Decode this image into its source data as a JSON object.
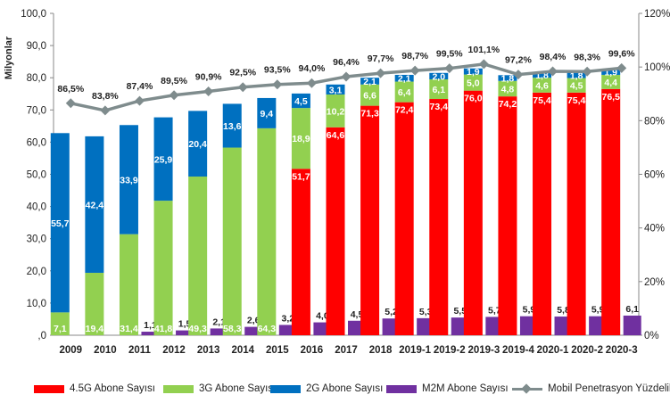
{
  "chart_data": {
    "type": "bar",
    "ylabel": "Milyonlar",
    "ylim": [
      0,
      100
    ],
    "y2lim": [
      0,
      120
    ],
    "yticks": [
      "0,0",
      "10,0",
      "20,0",
      "30,0",
      "40,0",
      "50,0",
      "60,0",
      "70,0",
      "80,0",
      "90,0",
      "100,0"
    ],
    "yticks_display": [
      ",0",
      "10,0",
      "20,0",
      "30,0",
      "40,0",
      "50,0",
      "60,0",
      "70,0",
      "80,0",
      "90,0",
      "100,0"
    ],
    "y2ticks": [
      "0%",
      "20%",
      "40%",
      "60%",
      "80%",
      "100%",
      "120%"
    ],
    "categories": [
      "2009",
      "2010",
      "2011",
      "2012",
      "2013",
      "2014",
      "2015",
      "2016",
      "2017",
      "2018",
      "2019-1",
      "2019-2",
      "2019-3",
      "2019-4",
      "2020-1",
      "2020-2",
      "2020-3"
    ],
    "stacked_series": [
      {
        "name": "4.5G Abone Sayısı",
        "color": "#ff0000",
        "values": [
          null,
          null,
          null,
          null,
          null,
          null,
          null,
          51.7,
          64.6,
          71.3,
          72.4,
          73.4,
          76.0,
          74.2,
          75.4,
          75.4,
          76.5
        ],
        "labels": [
          "",
          "",
          "",
          "",
          "",
          "",
          "",
          "51,7",
          "64,6",
          "71,3",
          "72,4",
          "73,4",
          "76,0",
          "74,2",
          "75,4",
          "75,4",
          "76,5"
        ]
      },
      {
        "name": "3G Abone Sayısı",
        "color": "#92d050",
        "values": [
          7.1,
          19.4,
          31.4,
          41.8,
          49.3,
          58.3,
          64.3,
          18.9,
          10.2,
          6.6,
          6.4,
          6.1,
          5.0,
          4.8,
          4.6,
          4.5,
          4.4
        ],
        "labels": [
          "7,1",
          "19,4",
          "31,4",
          "41,8",
          "49,3",
          "58,3",
          "64,3",
          "18,9",
          "10,2",
          "6,6",
          "6,4",
          "6,1",
          "5,0",
          "4,8",
          "4,6",
          "4,5",
          "4,4"
        ]
      },
      {
        "name": "2G Abone Sayısı",
        "color": "#0070c0",
        "values": [
          55.7,
          42.4,
          33.9,
          25.9,
          20.4,
          13.6,
          9.4,
          4.5,
          3.1,
          2.1,
          2.1,
          2.0,
          1.9,
          1.8,
          1.8,
          1.8,
          1.9
        ],
        "labels": [
          "55,7",
          "42,4",
          "33,9",
          "25,9",
          "20,4",
          "13,6",
          "9,4",
          "4,5",
          "3,1",
          "2,1",
          "2,1",
          "2,0",
          "1,9",
          "1,8",
          "1,8",
          "1,8",
          "1,9"
        ]
      }
    ],
    "m2m_series": {
      "name": "M2M Abone Sayısı",
      "color": "#7030a0",
      "values": [
        null,
        null,
        1.1,
        1.5,
        2.1,
        2.6,
        3.2,
        4.0,
        4.5,
        5.2,
        5.3,
        5.5,
        5.7,
        5.9,
        5.8,
        5.9,
        6.1
      ],
      "labels": [
        "",
        "",
        "1,1",
        "1,5",
        "2,1",
        "2,6",
        "3,2",
        "4,0",
        "4,5",
        "5,2",
        "5,3",
        "5,5",
        "5,7",
        "5,9",
        "5,8",
        "5,9",
        "6,1"
      ]
    },
    "line_series": {
      "name": "Mobil Penetrasyon Yüzdelik",
      "color": "#7f8c8d",
      "axis": "right",
      "values": [
        86.5,
        83.8,
        87.4,
        89.5,
        90.9,
        92.5,
        93.5,
        94.0,
        96.4,
        97.7,
        98.7,
        99.5,
        101.1,
        97.2,
        98.4,
        98.3,
        99.6
      ],
      "labels": [
        "86,5%",
        "83,8%",
        "87,4%",
        "89,5%",
        "90,9%",
        "92,5%",
        "93,5%",
        "94,0%",
        "96,4%",
        "97,7%",
        "98,7%",
        "99,5%",
        "101,1%",
        "97,2%",
        "98,4%",
        "98,3%",
        "99,6%"
      ]
    },
    "legend": [
      "4.5G Abone Sayısı",
      "3G Abone Sayısı",
      "2G Abone Sayısı",
      "M2M Abone Sayısı",
      "Mobil Penetrasyon Yüzdelik"
    ],
    "legend_position": "bottom",
    "grid": false
  }
}
